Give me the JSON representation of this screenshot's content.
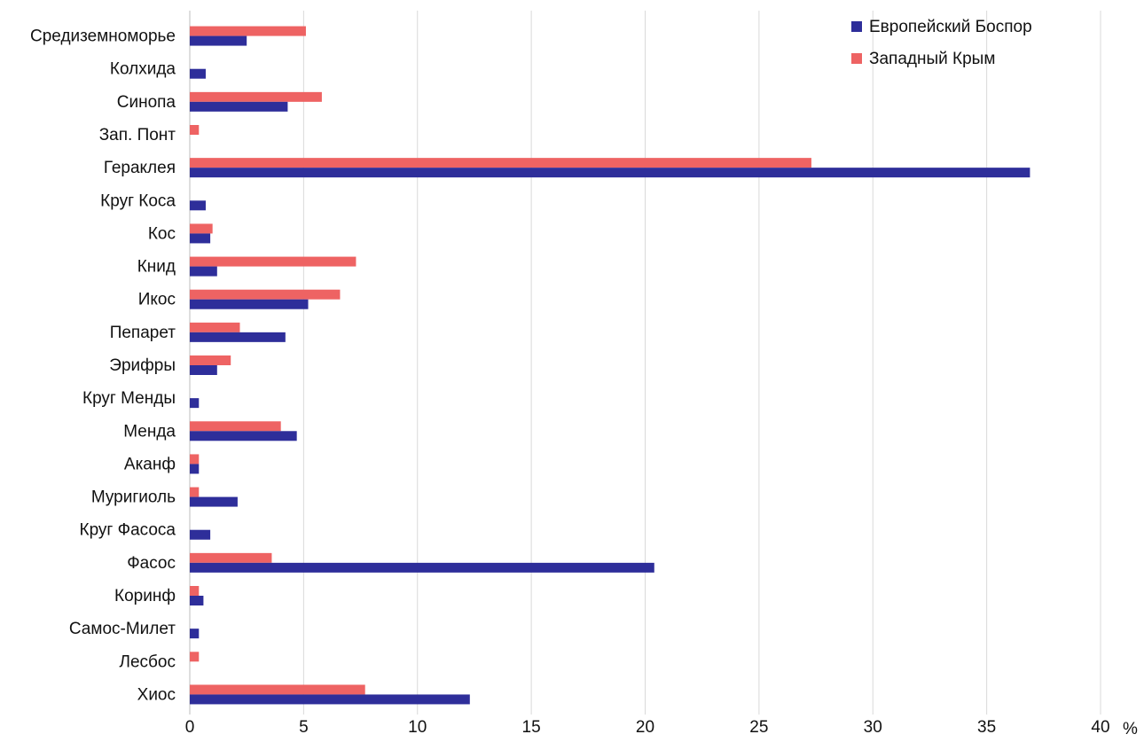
{
  "chart_data": {
    "type": "bar",
    "orientation": "horizontal",
    "categories": [
      "Средиземноморье",
      "Колхида",
      "Синопа",
      "Зап. Понт",
      "Гераклея",
      "Круг Коса",
      "Кос",
      "Книд",
      "Икос",
      "Пепарет",
      "Эрифры",
      "Круг Менды",
      "Менда",
      "Аканф",
      "Муригиоль",
      "Круг Фасоса",
      "Фасос",
      "Коринф",
      "Самос-Милет",
      "Лесбос",
      "Хиос"
    ],
    "series": [
      {
        "name": "Европейский Боспор",
        "color": "#2e2e9a",
        "values": [
          2.5,
          0.7,
          4.3,
          0,
          36.9,
          0.7,
          0.9,
          1.2,
          5.2,
          4.2,
          1.2,
          0.4,
          4.7,
          0.4,
          2.1,
          0.9,
          20.4,
          0.6,
          0.4,
          0,
          12.3
        ]
      },
      {
        "name": "Западный Крым",
        "color": "#ee6363",
        "values": [
          5.1,
          0,
          5.8,
          0.4,
          27.3,
          0,
          1.0,
          7.3,
          6.6,
          2.2,
          1.8,
          0,
          4.0,
          0.4,
          0.4,
          0,
          3.6,
          0.4,
          0,
          0.4,
          7.7
        ]
      }
    ],
    "xlim": [
      0,
      40
    ],
    "x_ticks": [
      "0",
      "5",
      "10",
      "15",
      "20",
      "25",
      "30",
      "35",
      "40"
    ],
    "x_unit": "%",
    "grid": "vertical",
    "legend_position": "top-right"
  }
}
